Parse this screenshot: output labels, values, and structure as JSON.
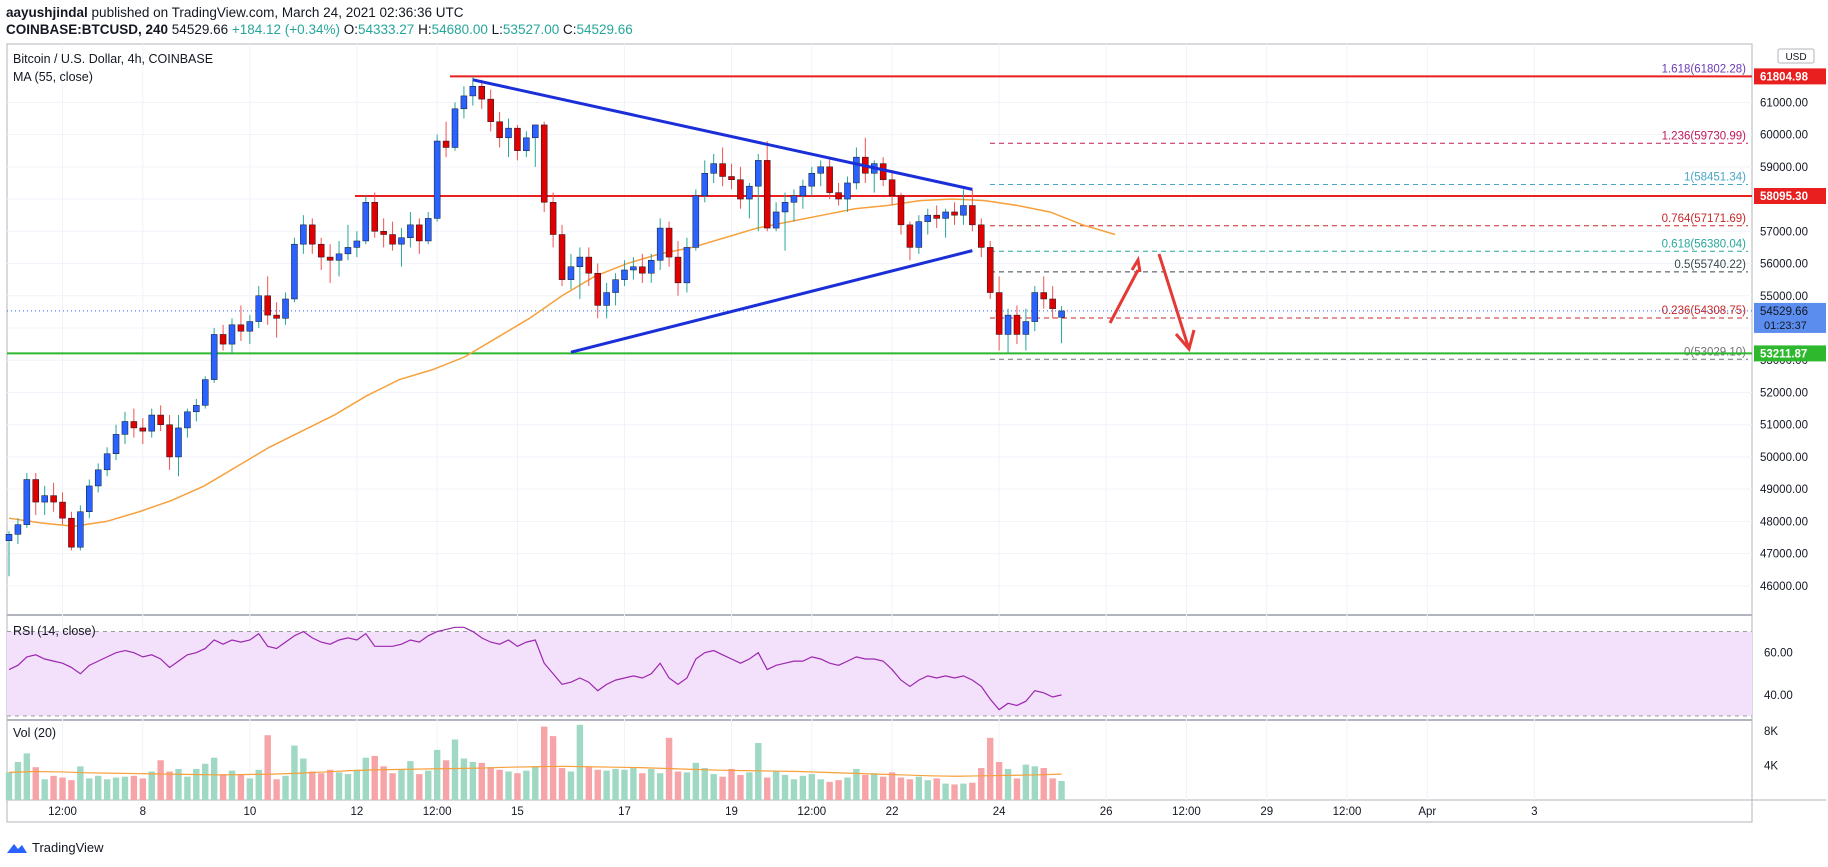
{
  "header": {
    "author": "aayushjindal",
    "published": "published on TradingView.com, March 24, 2021 02:36:36 UTC",
    "symbol": "COINBASE:BTCUSD, 240",
    "price": "54529.66",
    "change": "+184.12 (+0.34%)",
    "o_label": "O:",
    "o": "54333.27",
    "h_label": "H:",
    "h": "54680.00",
    "l_label": "L:",
    "l": "53527.00",
    "c_label": "C:",
    "c": "54529.66"
  },
  "legend": {
    "title": "Bitcoin / U.S. Dollar, 4h, COINBASE",
    "ma": "MA (55, close)",
    "rsi": "RSI (14, close)",
    "vol": "Vol (20)"
  },
  "currency": "USD",
  "footer": {
    "brand": "TradingView"
  },
  "colors": {
    "up": "#26a69a",
    "down": "#ef5350",
    "body_up": "#2962ff",
    "body_down": "#e00000",
    "ma": "#f7a03c",
    "trend": "#1b2fd8",
    "resistance": "#e91e1e",
    "support": "#2eb82e",
    "rsi": "#9c27b0",
    "rsi_fill": "#f3e0fa"
  },
  "chart_data": {
    "type": "candlestick",
    "ylim": [
      45500,
      62500
    ],
    "y_ticks": [
      46000,
      47000,
      48000,
      49000,
      50000,
      51000,
      52000,
      53000,
      54000,
      55000,
      56000,
      57000,
      58000,
      59000,
      60000,
      61000
    ],
    "y_tick_labels": [
      "46000.00",
      "47000.00",
      "48000.00",
      "49000.00",
      "50000.00",
      "51000.00",
      "52000.00",
      "53000.00",
      "54000.00",
      "55000.00",
      "56000.00",
      "57000.00",
      "58000.00",
      "59000.00",
      "60000.00",
      "61000.00"
    ],
    "x_ticks": [
      {
        "label": "12:00",
        "bar": 6
      },
      {
        "label": "8",
        "bar": 15
      },
      {
        "label": "10",
        "bar": 27
      },
      {
        "label": "12",
        "bar": 39
      },
      {
        "label": "12:00",
        "bar": 48
      },
      {
        "label": "15",
        "bar": 57
      },
      {
        "label": "17",
        "bar": 69
      },
      {
        "label": "19",
        "bar": 81
      },
      {
        "label": "12:00",
        "bar": 90
      },
      {
        "label": "22",
        "bar": 99
      },
      {
        "label": "24",
        "bar": 111
      },
      {
        "label": "26",
        "bar": 123
      },
      {
        "label": "12:00",
        "bar": 132
      },
      {
        "label": "29",
        "bar": 141
      },
      {
        "label": "12:00",
        "bar": 150
      },
      {
        "label": "Apr",
        "bar": 159
      },
      {
        "label": "3",
        "bar": 171
      }
    ],
    "candles": [
      [
        47400,
        47700,
        46300,
        47600
      ],
      [
        47600,
        48100,
        47300,
        47900
      ],
      [
        47900,
        49500,
        47800,
        49300
      ],
      [
        49300,
        49500,
        48200,
        48600
      ],
      [
        48600,
        49100,
        48200,
        48800
      ],
      [
        48800,
        49200,
        48300,
        48600
      ],
      [
        48600,
        48900,
        47900,
        48100
      ],
      [
        48100,
        48300,
        47100,
        47200
      ],
      [
        47200,
        48500,
        47100,
        48300
      ],
      [
        48300,
        49300,
        48100,
        49100
      ],
      [
        49100,
        49800,
        48900,
        49600
      ],
      [
        49600,
        50300,
        49400,
        50100
      ],
      [
        50100,
        51000,
        49900,
        50700
      ],
      [
        50700,
        51400,
        50400,
        51100
      ],
      [
        51100,
        51500,
        50600,
        50900
      ],
      [
        50900,
        51200,
        50400,
        50800
      ],
      [
        50800,
        51500,
        50600,
        51300
      ],
      [
        51300,
        51600,
        50800,
        51000
      ],
      [
        51000,
        51300,
        49600,
        50000
      ],
      [
        50000,
        51300,
        49400,
        50900
      ],
      [
        50900,
        51500,
        50600,
        51400
      ],
      [
        51400,
        51800,
        51100,
        51600
      ],
      [
        51600,
        52500,
        51500,
        52400
      ],
      [
        52400,
        54000,
        52300,
        53800
      ],
      [
        53800,
        54100,
        53300,
        53500
      ],
      [
        53500,
        54300,
        53200,
        54100
      ],
      [
        54100,
        54700,
        53600,
        53900
      ],
      [
        53900,
        54400,
        53500,
        54200
      ],
      [
        54200,
        55300,
        54000,
        55000
      ],
      [
        55000,
        55600,
        54100,
        54400
      ],
      [
        54400,
        54800,
        53700,
        54300
      ],
      [
        54300,
        55100,
        54100,
        54900
      ],
      [
        54900,
        56800,
        54800,
        56600
      ],
      [
        56600,
        57500,
        56300,
        57200
      ],
      [
        57200,
        57400,
        56300,
        56600
      ],
      [
        56600,
        56800,
        55800,
        56200
      ],
      [
        56200,
        56600,
        55400,
        56100
      ],
      [
        56100,
        56700,
        55600,
        56300
      ],
      [
        56300,
        57200,
        56100,
        56500
      ],
      [
        56500,
        57000,
        56200,
        56700
      ],
      [
        56700,
        58100,
        56600,
        57900
      ],
      [
        57900,
        58200,
        56800,
        57000
      ],
      [
        57000,
        57400,
        56500,
        56900
      ],
      [
        56900,
        57300,
        56400,
        56600
      ],
      [
        56600,
        57100,
        55900,
        56800
      ],
      [
        56800,
        57600,
        56500,
        57200
      ],
      [
        57200,
        57400,
        56300,
        56700
      ],
      [
        56700,
        57600,
        56600,
        57400
      ],
      [
        57400,
        60000,
        57300,
        59800
      ],
      [
        59800,
        60400,
        59300,
        59600
      ],
      [
        59600,
        61000,
        59500,
        60800
      ],
      [
        60800,
        61500,
        60500,
        61200
      ],
      [
        61200,
        61800,
        60900,
        61500
      ],
      [
        61500,
        61700,
        60800,
        61100
      ],
      [
        61100,
        61400,
        60100,
        60400
      ],
      [
        60400,
        60700,
        59600,
        59900
      ],
      [
        59900,
        60500,
        59300,
        60200
      ],
      [
        60200,
        60300,
        59200,
        59500
      ],
      [
        59500,
        60100,
        59300,
        59900
      ],
      [
        59900,
        60300,
        59000,
        60300
      ],
      [
        60300,
        60400,
        57600,
        57900
      ],
      [
        57900,
        58200,
        56500,
        56900
      ],
      [
        56900,
        57200,
        55300,
        55500
      ],
      [
        55500,
        56300,
        55200,
        55900
      ],
      [
        55900,
        56500,
        54900,
        56200
      ],
      [
        56200,
        56500,
        55300,
        55700
      ],
      [
        55700,
        56000,
        54300,
        54700
      ],
      [
        54700,
        55400,
        54300,
        55100
      ],
      [
        55100,
        55700,
        54700,
        55500
      ],
      [
        55500,
        56100,
        55300,
        55800
      ],
      [
        55800,
        56200,
        55500,
        55900
      ],
      [
        55900,
        56300,
        55400,
        55700
      ],
      [
        55700,
        56300,
        55400,
        56100
      ],
      [
        56100,
        57400,
        55800,
        57100
      ],
      [
        57100,
        57300,
        55900,
        56200
      ],
      [
        56200,
        56700,
        55000,
        55400
      ],
      [
        55400,
        56800,
        55100,
        56500
      ],
      [
        56500,
        58300,
        56400,
        58100
      ],
      [
        58100,
        59200,
        57900,
        58800
      ],
      [
        58800,
        59400,
        58500,
        59100
      ],
      [
        59100,
        59600,
        58400,
        58700
      ],
      [
        58700,
        59100,
        58300,
        58600
      ],
      [
        58600,
        59000,
        57700,
        58000
      ],
      [
        58000,
        58500,
        57400,
        58400
      ],
      [
        58400,
        59400,
        57000,
        59200
      ],
      [
        59200,
        59800,
        57000,
        57100
      ],
      [
        57100,
        57900,
        57000,
        57600
      ],
      [
        57600,
        58200,
        56400,
        57900
      ],
      [
        57900,
        58300,
        57300,
        58100
      ],
      [
        58100,
        58600,
        57700,
        58400
      ],
      [
        58400,
        59000,
        58100,
        58800
      ],
      [
        58800,
        59200,
        58400,
        59000
      ],
      [
        59000,
        59300,
        58000,
        58200
      ],
      [
        58200,
        58500,
        57800,
        58000
      ],
      [
        58000,
        58700,
        57600,
        58500
      ],
      [
        58500,
        59600,
        58300,
        59300
      ],
      [
        59300,
        59900,
        58500,
        58800
      ],
      [
        58800,
        59200,
        58200,
        59100
      ],
      [
        59100,
        59300,
        58400,
        58600
      ],
      [
        58600,
        58900,
        57800,
        58100
      ],
      [
        58100,
        58200,
        56900,
        57200
      ],
      [
        57200,
        57300,
        56100,
        56500
      ],
      [
        56500,
        57500,
        56300,
        57300
      ],
      [
        57300,
        57700,
        56900,
        57500
      ],
      [
        57500,
        57800,
        57100,
        57400
      ],
      [
        57400,
        57700,
        56800,
        57600
      ],
      [
        57600,
        57900,
        57200,
        57500
      ],
      [
        57500,
        58300,
        57200,
        57800
      ],
      [
        57800,
        58300,
        57000,
        57200
      ],
      [
        57200,
        57400,
        56200,
        56500
      ],
      [
        56500,
        56700,
        54900,
        55100
      ],
      [
        55100,
        55600,
        53300,
        53800
      ],
      [
        53800,
        54600,
        53200,
        54400
      ],
      [
        54400,
        54700,
        53500,
        53800
      ],
      [
        53800,
        54600,
        53300,
        54200
      ],
      [
        54200,
        55300,
        53900,
        55100
      ],
      [
        55100,
        55600,
        54600,
        54900
      ],
      [
        54900,
        55300,
        54300,
        54600
      ],
      [
        54333,
        54680,
        53527,
        54530
      ]
    ],
    "ma55": [
      [
        0,
        48100
      ],
      [
        5,
        47950
      ],
      [
        10,
        47850
      ],
      [
        15,
        48000
      ],
      [
        20,
        48300
      ],
      [
        25,
        48650
      ],
      [
        30,
        49100
      ],
      [
        35,
        49700
      ],
      [
        40,
        50300
      ],
      [
        45,
        50800
      ],
      [
        50,
        51300
      ],
      [
        55,
        51900
      ],
      [
        60,
        52400
      ],
      [
        65,
        52700
      ],
      [
        70,
        53100
      ],
      [
        75,
        53700
      ],
      [
        80,
        54300
      ],
      [
        85,
        55000
      ],
      [
        90,
        55600
      ],
      [
        95,
        56000
      ],
      [
        100,
        56300
      ],
      [
        105,
        56500
      ],
      [
        110,
        56800
      ],
      [
        115,
        57100
      ],
      [
        120,
        57300
      ],
      [
        125,
        57500
      ],
      [
        130,
        57700
      ],
      [
        135,
        57800
      ],
      [
        140,
        57950
      ],
      [
        145,
        58000
      ],
      [
        150,
        57950
      ],
      [
        155,
        57800
      ],
      [
        160,
        57600
      ],
      [
        165,
        57200
      ],
      [
        170,
        56900
      ]
    ],
    "ma55_x_scale": 0.7294,
    "horizontal_lines": [
      {
        "name": "resistance-high",
        "value": 61804.98,
        "label": "61804.98",
        "color": "#e91e1e"
      },
      {
        "name": "resistance-mid",
        "value": 58095.3,
        "label": "58095.30",
        "color": "#e91e1e"
      },
      {
        "name": "support",
        "value": 53211.87,
        "label": "53211.87",
        "color": "#2eb82e"
      }
    ],
    "current_price": {
      "value": 54529.66,
      "label": "54529.66",
      "countdown": "01:23:37"
    },
    "fib_levels": [
      {
        "ratio": "1.618",
        "value": 61802.28,
        "label": "1.618(61802.28)",
        "color": "#6a3ab5"
      },
      {
        "ratio": "1.236",
        "value": 59730.99,
        "label": "1.236(59730.99)",
        "color": "#c2185b"
      },
      {
        "ratio": "1",
        "value": 58451.34,
        "label": "1(58451.34)",
        "color": "#4aa6c9"
      },
      {
        "ratio": "0.764",
        "value": 57171.69,
        "label": "0.764(57171.69)",
        "color": "#c62828"
      },
      {
        "ratio": "0.618",
        "value": 56380.04,
        "label": "0.618(56380.04)",
        "color": "#26a69a"
      },
      {
        "ratio": "0.5",
        "value": 55740.22,
        "label": "0.5(55740.22)",
        "color": "#37474f"
      },
      {
        "ratio": "0.236",
        "value": 54308.75,
        "label": "0.236(54308.75)",
        "color": "#c62828"
      },
      {
        "ratio": "0",
        "value": 53029.1,
        "label": "0(53029.10)",
        "color": "#757575"
      }
    ],
    "trendlines": [
      {
        "name": "upper-trendline",
        "from": {
          "bar": 52,
          "value": 61700
        },
        "to": {
          "bar": 108,
          "value": 58300
        }
      },
      {
        "name": "lower-trendline",
        "from": {
          "bar": 63,
          "value": 53250
        },
        "to": {
          "bar": 108,
          "value": 56400
        }
      }
    ],
    "rsi": {
      "ylim": [
        30,
        75
      ],
      "ticks": [
        40,
        60
      ],
      "tick_labels": [
        "40.00",
        "60.00"
      ],
      "upper": 70,
      "lower": 30,
      "values": [
        52,
        54,
        58,
        59,
        57,
        56,
        55,
        53,
        50,
        54,
        56,
        58,
        60,
        61,
        60,
        58,
        59,
        57,
        53,
        56,
        59,
        60,
        62,
        66,
        64,
        66,
        65,
        66,
        69,
        63,
        62,
        65,
        68,
        70,
        67,
        65,
        64,
        66,
        67,
        66,
        69,
        63,
        63,
        63,
        64,
        66,
        65,
        68,
        70,
        71,
        72,
        72,
        70,
        67,
        65,
        64,
        66,
        63,
        65,
        66,
        55,
        50,
        45,
        46,
        48,
        46,
        42,
        45,
        47,
        48,
        49,
        48,
        50,
        55,
        48,
        45,
        48,
        57,
        60,
        61,
        59,
        57,
        55,
        57,
        60,
        52,
        54,
        55,
        56,
        56,
        58,
        57,
        55,
        54,
        56,
        58,
        57,
        57,
        56,
        52,
        47,
        44,
        47,
        49,
        48,
        49,
        48,
        49,
        47,
        44,
        38,
        33,
        36,
        35,
        37,
        42,
        41,
        39,
        40
      ]
    },
    "volume": {
      "ylim": [
        0,
        8800
      ],
      "ticks": [
        4000,
        8000
      ],
      "tick_labels": [
        "4K",
        "8K"
      ],
      "values": [
        3200,
        4400,
        5400,
        3800,
        2400,
        2800,
        2600,
        2300,
        3900,
        2500,
        2800,
        2400,
        2600,
        2700,
        2800,
        2500,
        3300,
        4600,
        3300,
        3600,
        2700,
        3600,
        4200,
        4900,
        3000,
        3400,
        2900,
        2500,
        3500,
        7500,
        2400,
        2800,
        6300,
        4800,
        3300,
        3100,
        3500,
        3200,
        3000,
        3500,
        4900,
        5100,
        3900,
        3100,
        3600,
        4500,
        3000,
        3400,
        5800,
        4600,
        7000,
        4800,
        4400,
        4300,
        3800,
        3500,
        3300,
        3100,
        3400,
        3900,
        8500,
        7400,
        3700,
        3300,
        8700,
        3800,
        3500,
        3400,
        3600,
        3500,
        3700,
        3100,
        3600,
        3100,
        7200,
        3300,
        3200,
        4300,
        3700,
        3000,
        2700,
        3600,
        2900,
        3200,
        6600,
        2600,
        3300,
        2900,
        2400,
        2800,
        3000,
        2400,
        2100,
        2300,
        2600,
        3600,
        2900,
        3100,
        2700,
        3200,
        2600,
        2400,
        2700,
        2300,
        2500,
        1900,
        1800,
        1900,
        2000,
        3700,
        7200,
        4400,
        3600,
        2500,
        4100,
        3900,
        3700,
        2500,
        2200
      ],
      "ma": [
        3200,
        3300,
        3250,
        3150,
        3100,
        3050,
        3000,
        2950,
        2900,
        2950,
        3000,
        3100,
        3250,
        3400,
        3500,
        3550,
        3600,
        3650,
        3700,
        3800,
        3850,
        3900,
        3850,
        3800,
        3750,
        3650,
        3550,
        3450,
        3400,
        3350,
        3300,
        3200,
        3100,
        3000,
        2900,
        2800,
        2750,
        2800,
        2850,
        2900,
        3000
      ]
    }
  }
}
